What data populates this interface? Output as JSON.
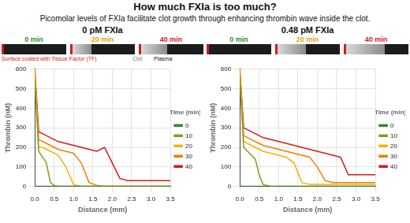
{
  "header": {
    "title": "How much FXIa is too much?",
    "subtitle": "Picomolar levels of FXIa facilitate clot growth through enhancing thrombin wave inside the clot."
  },
  "strips": [
    {
      "label": "0 min",
      "color": "#2e8b2e"
    },
    {
      "label": "20 min",
      "color": "#e6a100"
    },
    {
      "label": "40 min",
      "color": "#d7191c"
    }
  ],
  "annotations": {
    "surface": {
      "text": "Surface coated with Tissue Factor (TF)",
      "color": "#d7191c"
    },
    "clot": {
      "text": "Clot",
      "color": "#777777"
    },
    "plasma": {
      "text": "Plasma",
      "color": "#111111"
    }
  },
  "chart_data": [
    {
      "type": "line",
      "title": "0 pM FXIa",
      "x_label": "Distance (mm)",
      "y_label": "Thrombin (nM)",
      "legend_title": "Time (min)",
      "legend": "right",
      "grid": true,
      "x": [
        0,
        0.1,
        0.2,
        0.3,
        0.4,
        0.5,
        0.6,
        0.8,
        1.0,
        1.2,
        1.4,
        1.6,
        1.8,
        2.0,
        2.2,
        2.4,
        2.6,
        2.8,
        3.0,
        3.2,
        3.5
      ],
      "xlim": [
        0,
        3.5
      ],
      "xticks": [
        {
          "value": 0,
          "label": "0.0"
        },
        {
          "value": 0.5,
          "label": "0.5"
        },
        {
          "value": 1,
          "label": "1.0"
        },
        {
          "value": 1.5,
          "label": "1.5"
        },
        {
          "value": 2,
          "label": "2.0"
        },
        {
          "value": 2.5,
          "label": "2.5"
        },
        {
          "value": 3,
          "label": "3.0"
        },
        {
          "value": 3.5,
          "label": "3.5"
        }
      ],
      "ylim": [
        0,
        600
      ],
      "yticks": [
        0,
        100,
        200,
        300,
        400,
        500,
        600
      ],
      "series": [
        {
          "name": "0",
          "color": "#2e8b2e",
          "values": [
            0,
            0,
            0,
            0,
            0,
            0,
            0,
            0,
            0,
            0,
            0,
            0,
            0,
            0,
            0,
            0,
            0,
            0,
            0,
            0,
            0
          ]
        },
        {
          "name": "10",
          "color": "#8a9a1b",
          "values": [
            550,
            180,
            150,
            120,
            20,
            5,
            0,
            0,
            0,
            0,
            0,
            0,
            0,
            0,
            0,
            0,
            0,
            0,
            0,
            0,
            0
          ]
        },
        {
          "name": "20",
          "color": "#f0b400",
          "values": [
            580,
            200,
            200,
            190,
            180,
            170,
            160,
            100,
            10,
            0,
            0,
            0,
            0,
            0,
            0,
            0,
            0,
            0,
            0,
            0,
            0
          ]
        },
        {
          "name": "30",
          "color": "#f07d00",
          "values": [
            600,
            240,
            230,
            220,
            210,
            200,
            190,
            180,
            170,
            120,
            20,
            5,
            0,
            0,
            0,
            0,
            0,
            0,
            0,
            0,
            0
          ]
        },
        {
          "name": "40",
          "color": "#d7191c",
          "values": [
            600,
            280,
            270,
            260,
            250,
            240,
            230,
            220,
            210,
            200,
            190,
            180,
            200,
            120,
            40,
            30,
            30,
            30,
            30,
            30,
            30
          ]
        }
      ]
    },
    {
      "type": "line",
      "title": "0.48 pM FXIa",
      "x_label": "Distance (mm)",
      "y_label": "Thrombin (nM)",
      "legend_title": "Time (min)",
      "legend": "right",
      "grid": true,
      "x": [
        0,
        0.1,
        0.2,
        0.3,
        0.4,
        0.5,
        0.6,
        0.8,
        1.0,
        1.2,
        1.4,
        1.6,
        1.8,
        2.0,
        2.2,
        2.4,
        2.6,
        2.8,
        3.0,
        3.2,
        3.5
      ],
      "xlim": [
        0,
        3.5
      ],
      "xticks": [
        {
          "value": 0,
          "label": "0.0"
        },
        {
          "value": 0.5,
          "label": "0.5"
        },
        {
          "value": 1,
          "label": "1.0"
        },
        {
          "value": 1.5,
          "label": "1.5"
        },
        {
          "value": 2,
          "label": "2.0"
        },
        {
          "value": 2.5,
          "label": "2.5"
        },
        {
          "value": 3,
          "label": "3.0"
        },
        {
          "value": 3.5,
          "label": "3.5"
        }
      ],
      "ylim": [
        0,
        600
      ],
      "yticks": [
        0,
        100,
        200,
        300,
        400,
        500,
        600
      ],
      "series": [
        {
          "name": "0",
          "color": "#2e8b2e",
          "values": [
            0,
            0,
            0,
            0,
            0,
            0,
            0,
            0,
            0,
            0,
            0,
            0,
            0,
            0,
            0,
            0,
            0,
            0,
            0,
            0,
            0
          ]
        },
        {
          "name": "10",
          "color": "#8a9a1b",
          "values": [
            560,
            200,
            180,
            160,
            140,
            60,
            10,
            0,
            0,
            0,
            0,
            0,
            0,
            0,
            0,
            0,
            0,
            0,
            0,
            0,
            0
          ]
        },
        {
          "name": "20",
          "color": "#f0b400",
          "values": [
            590,
            230,
            220,
            210,
            200,
            190,
            180,
            170,
            160,
            150,
            120,
            20,
            10,
            10,
            10,
            10,
            10,
            10,
            10,
            10,
            10
          ]
        },
        {
          "name": "30",
          "color": "#f07d00",
          "values": [
            600,
            260,
            250,
            240,
            230,
            220,
            210,
            200,
            190,
            180,
            170,
            160,
            150,
            100,
            30,
            20,
            20,
            20,
            20,
            20,
            20
          ]
        },
        {
          "name": "40",
          "color": "#d7191c",
          "values": [
            600,
            300,
            290,
            280,
            270,
            260,
            250,
            240,
            230,
            220,
            210,
            200,
            190,
            180,
            170,
            160,
            150,
            60,
            60,
            60,
            60
          ]
        }
      ]
    }
  ]
}
